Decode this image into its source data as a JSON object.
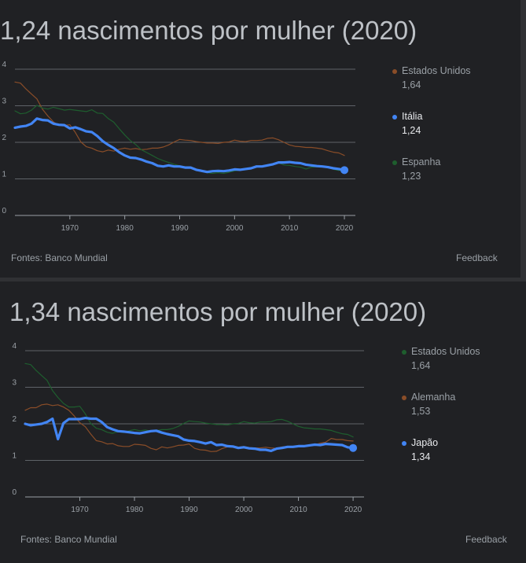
{
  "chart_data": [
    {
      "type": "line",
      "title": "1,24 nascimentos por mulher (2020)",
      "xlim": [
        1960,
        2022
      ],
      "ylim": [
        0,
        4
      ],
      "x_ticks": [
        "1970",
        "1980",
        "1990",
        "2000",
        "2010",
        "2020"
      ],
      "y_ticks": [
        "0",
        "1",
        "2",
        "3",
        "4"
      ],
      "grid": true,
      "legend_position": "right",
      "source": "Fontes: Banco Mundial",
      "feedback": "Feedback",
      "highlighted_series": "Itália",
      "series": [
        {
          "name": "Estados Unidos",
          "value_label": "1,64",
          "color": "#8a4d28",
          "highlight": false,
          "x": [
            1960,
            1961,
            1962,
            1963,
            1964,
            1965,
            1966,
            1967,
            1968,
            1969,
            1970,
            1971,
            1972,
            1973,
            1974,
            1975,
            1976,
            1977,
            1978,
            1979,
            1980,
            1981,
            1982,
            1983,
            1984,
            1985,
            1986,
            1987,
            1988,
            1989,
            1990,
            1991,
            1992,
            1993,
            1994,
            1995,
            1996,
            1997,
            1998,
            1999,
            2000,
            2001,
            2002,
            2003,
            2004,
            2005,
            2006,
            2007,
            2008,
            2009,
            2010,
            2011,
            2012,
            2013,
            2014,
            2015,
            2016,
            2017,
            2018,
            2019,
            2020
          ],
          "y": [
            3.65,
            3.62,
            3.46,
            3.32,
            3.19,
            2.91,
            2.72,
            2.56,
            2.46,
            2.46,
            2.48,
            2.27,
            2.01,
            1.88,
            1.84,
            1.77,
            1.74,
            1.79,
            1.76,
            1.81,
            1.84,
            1.81,
            1.83,
            1.8,
            1.81,
            1.84,
            1.84,
            1.87,
            1.93,
            2.01,
            2.08,
            2.06,
            2.05,
            2.02,
            2.0,
            1.98,
            1.98,
            1.97,
            2.0,
            2.01,
            2.06,
            2.03,
            2.02,
            2.05,
            2.05,
            2.06,
            2.11,
            2.12,
            2.07,
            2.0,
            1.93,
            1.89,
            1.88,
            1.86,
            1.86,
            1.84,
            1.82,
            1.77,
            1.73,
            1.71,
            1.64
          ]
        },
        {
          "name": "Itália",
          "value_label": "1,24",
          "color": "#4285f4",
          "highlight": true,
          "x": [
            1960,
            1961,
            1962,
            1963,
            1964,
            1965,
            1966,
            1967,
            1968,
            1969,
            1970,
            1971,
            1972,
            1973,
            1974,
            1975,
            1976,
            1977,
            1978,
            1979,
            1980,
            1981,
            1982,
            1983,
            1984,
            1985,
            1986,
            1987,
            1988,
            1989,
            1990,
            1991,
            1992,
            1993,
            1994,
            1995,
            1996,
            1997,
            1998,
            1999,
            2000,
            2001,
            2002,
            2003,
            2004,
            2005,
            2006,
            2007,
            2008,
            2009,
            2010,
            2011,
            2012,
            2013,
            2014,
            2015,
            2016,
            2017,
            2018,
            2019,
            2020
          ],
          "y": [
            2.4,
            2.43,
            2.45,
            2.51,
            2.65,
            2.61,
            2.6,
            2.51,
            2.48,
            2.47,
            2.38,
            2.41,
            2.36,
            2.3,
            2.28,
            2.17,
            2.03,
            1.93,
            1.84,
            1.73,
            1.64,
            1.58,
            1.57,
            1.53,
            1.47,
            1.43,
            1.36,
            1.34,
            1.37,
            1.34,
            1.34,
            1.31,
            1.31,
            1.25,
            1.22,
            1.19,
            1.21,
            1.22,
            1.21,
            1.23,
            1.26,
            1.25,
            1.27,
            1.29,
            1.34,
            1.34,
            1.37,
            1.4,
            1.45,
            1.45,
            1.46,
            1.44,
            1.43,
            1.39,
            1.37,
            1.35,
            1.34,
            1.32,
            1.29,
            1.27,
            1.24
          ]
        },
        {
          "name": "Espanha",
          "value_label": "1,23",
          "color": "#1e5e2e",
          "highlight": false,
          "x": [
            1960,
            1961,
            1962,
            1963,
            1964,
            1965,
            1966,
            1967,
            1968,
            1969,
            1970,
            1971,
            1972,
            1973,
            1974,
            1975,
            1976,
            1977,
            1978,
            1979,
            1980,
            1981,
            1982,
            1983,
            1984,
            1985,
            1986,
            1987,
            1988,
            1989,
            1990,
            1991,
            1992,
            1993,
            1994,
            1995,
            1996,
            1997,
            1998,
            1999,
            2000,
            2001,
            2002,
            2003,
            2004,
            2005,
            2006,
            2007,
            2008,
            2009,
            2010,
            2011,
            2012,
            2013,
            2014,
            2015,
            2016,
            2017,
            2018,
            2019,
            2020
          ],
          "y": [
            2.86,
            2.78,
            2.8,
            2.88,
            3.01,
            2.94,
            2.91,
            2.96,
            2.92,
            2.88,
            2.9,
            2.88,
            2.86,
            2.84,
            2.89,
            2.8,
            2.79,
            2.65,
            2.55,
            2.37,
            2.2,
            2.05,
            1.94,
            1.8,
            1.72,
            1.64,
            1.56,
            1.5,
            1.45,
            1.4,
            1.36,
            1.33,
            1.32,
            1.26,
            1.21,
            1.17,
            1.15,
            1.17,
            1.15,
            1.18,
            1.22,
            1.24,
            1.25,
            1.3,
            1.32,
            1.34,
            1.36,
            1.38,
            1.44,
            1.38,
            1.37,
            1.34,
            1.32,
            1.27,
            1.32,
            1.33,
            1.34,
            1.31,
            1.26,
            1.23,
            1.23
          ]
        }
      ]
    },
    {
      "type": "line",
      "title": "1,34 nascimentos por mulher (2020)",
      "xlim": [
        1960,
        2022
      ],
      "ylim": [
        0,
        4
      ],
      "x_ticks": [
        "1970",
        "1980",
        "1990",
        "2000",
        "2010",
        "2020"
      ],
      "y_ticks": [
        "0",
        "1",
        "2",
        "3",
        "4"
      ],
      "grid": true,
      "legend_position": "right",
      "source": "Fontes: Banco Mundial",
      "feedback": "Feedback",
      "highlighted_series": "Japão",
      "series": [
        {
          "name": "Estados Unidos",
          "value_label": "1,64",
          "color": "#1e5e2e",
          "highlight": false,
          "x": [
            1960,
            1961,
            1962,
            1963,
            1964,
            1965,
            1966,
            1967,
            1968,
            1969,
            1970,
            1971,
            1972,
            1973,
            1974,
            1975,
            1976,
            1977,
            1978,
            1979,
            1980,
            1981,
            1982,
            1983,
            1984,
            1985,
            1986,
            1987,
            1988,
            1989,
            1990,
            1991,
            1992,
            1993,
            1994,
            1995,
            1996,
            1997,
            1998,
            1999,
            2000,
            2001,
            2002,
            2003,
            2004,
            2005,
            2006,
            2007,
            2008,
            2009,
            2010,
            2011,
            2012,
            2013,
            2014,
            2015,
            2016,
            2017,
            2018,
            2019,
            2020
          ],
          "y": [
            3.65,
            3.62,
            3.46,
            3.32,
            3.19,
            2.91,
            2.72,
            2.56,
            2.46,
            2.46,
            2.48,
            2.27,
            2.01,
            1.88,
            1.84,
            1.77,
            1.74,
            1.79,
            1.76,
            1.81,
            1.84,
            1.81,
            1.83,
            1.8,
            1.81,
            1.84,
            1.84,
            1.87,
            1.93,
            2.01,
            2.08,
            2.06,
            2.05,
            2.02,
            2.0,
            1.98,
            1.98,
            1.97,
            2.0,
            2.01,
            2.06,
            2.03,
            2.02,
            2.05,
            2.05,
            2.06,
            2.11,
            2.12,
            2.07,
            2.0,
            1.93,
            1.89,
            1.88,
            1.86,
            1.86,
            1.84,
            1.82,
            1.77,
            1.73,
            1.71,
            1.64
          ]
        },
        {
          "name": "Alemanha",
          "value_label": "1,53",
          "color": "#8a4d28",
          "highlight": false,
          "x": [
            1960,
            1961,
            1962,
            1963,
            1964,
            1965,
            1966,
            1967,
            1968,
            1969,
            1970,
            1971,
            1972,
            1973,
            1974,
            1975,
            1976,
            1977,
            1978,
            1979,
            1980,
            1981,
            1982,
            1983,
            1984,
            1985,
            1986,
            1987,
            1988,
            1989,
            1990,
            1991,
            1992,
            1993,
            1994,
            1995,
            1996,
            1997,
            1998,
            1999,
            2000,
            2001,
            2002,
            2003,
            2004,
            2005,
            2006,
            2007,
            2008,
            2009,
            2010,
            2011,
            2012,
            2013,
            2014,
            2015,
            2016,
            2017,
            2018,
            2019,
            2020
          ],
          "y": [
            2.37,
            2.44,
            2.44,
            2.52,
            2.54,
            2.5,
            2.52,
            2.46,
            2.37,
            2.21,
            2.03,
            1.92,
            1.72,
            1.54,
            1.51,
            1.45,
            1.46,
            1.4,
            1.38,
            1.38,
            1.44,
            1.43,
            1.41,
            1.33,
            1.29,
            1.37,
            1.34,
            1.37,
            1.41,
            1.42,
            1.45,
            1.33,
            1.29,
            1.28,
            1.24,
            1.25,
            1.32,
            1.37,
            1.36,
            1.36,
            1.38,
            1.35,
            1.34,
            1.34,
            1.36,
            1.34,
            1.33,
            1.37,
            1.38,
            1.36,
            1.39,
            1.39,
            1.41,
            1.42,
            1.47,
            1.5,
            1.6,
            1.57,
            1.57,
            1.54,
            1.53
          ]
        },
        {
          "name": "Japão",
          "value_label": "1,34",
          "color": "#4285f4",
          "highlight": true,
          "x": [
            1960,
            1961,
            1962,
            1963,
            1964,
            1965,
            1966,
            1967,
            1968,
            1969,
            1970,
            1971,
            1972,
            1973,
            1974,
            1975,
            1976,
            1977,
            1978,
            1979,
            1980,
            1981,
            1982,
            1983,
            1984,
            1985,
            1986,
            1987,
            1988,
            1989,
            1990,
            1991,
            1992,
            1993,
            1994,
            1995,
            1996,
            1997,
            1998,
            1999,
            2000,
            2001,
            2002,
            2003,
            2004,
            2005,
            2006,
            2007,
            2008,
            2009,
            2010,
            2011,
            2012,
            2013,
            2014,
            2015,
            2016,
            2017,
            2018,
            2019,
            2020
          ],
          "y": [
            2.0,
            1.96,
            1.98,
            2.0,
            2.05,
            2.14,
            1.58,
            2.02,
            2.13,
            2.13,
            2.13,
            2.16,
            2.14,
            2.14,
            2.05,
            1.91,
            1.85,
            1.8,
            1.79,
            1.77,
            1.75,
            1.74,
            1.77,
            1.8,
            1.81,
            1.76,
            1.72,
            1.69,
            1.66,
            1.57,
            1.54,
            1.53,
            1.5,
            1.46,
            1.5,
            1.42,
            1.43,
            1.39,
            1.38,
            1.34,
            1.36,
            1.33,
            1.32,
            1.29,
            1.29,
            1.26,
            1.32,
            1.34,
            1.37,
            1.37,
            1.39,
            1.39,
            1.41,
            1.43,
            1.42,
            1.45,
            1.44,
            1.43,
            1.42,
            1.36,
            1.34
          ]
        }
      ]
    }
  ]
}
